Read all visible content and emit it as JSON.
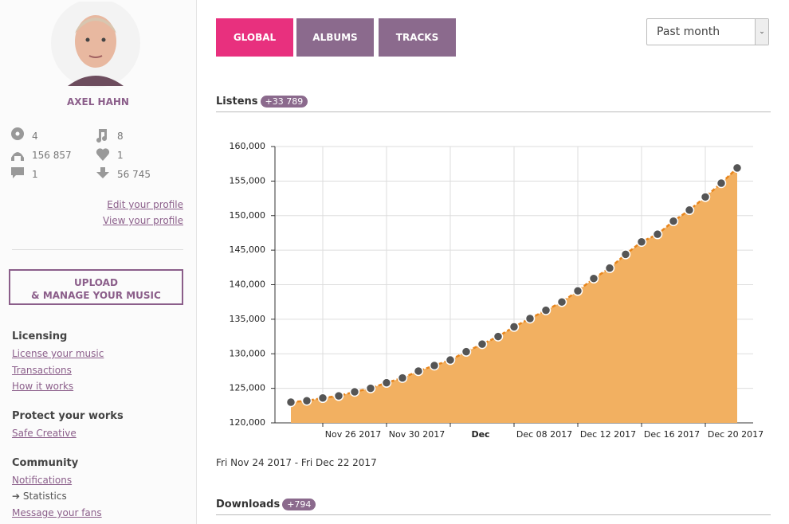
{
  "profile": {
    "name": "AXEL HAHN",
    "stats": [
      "4",
      "8",
      "156 857",
      "1",
      "1",
      "56 745"
    ],
    "links": [
      "Edit your profile",
      "View your profile"
    ]
  },
  "upload": [
    "UPLOAD",
    "& MANAGE YOUR MUSIC"
  ],
  "menu": [
    {
      "title": "Licensing",
      "items": [
        "License your music",
        "Transactions",
        "How it works"
      ]
    },
    {
      "title": "Protect your works",
      "items": [
        "Safe Creative"
      ]
    },
    {
      "title": "Community",
      "items": [
        "Notifications",
        "Statistics",
        "Message your fans"
      ]
    }
  ],
  "tabs": [
    "GLOBAL",
    "ALBUMS",
    "TRACKS"
  ],
  "period": "Past month",
  "listens": {
    "title": "Listens",
    "badge": "+33 789"
  },
  "chart_data": {
    "type": "area",
    "color": "#f2b061",
    "line_color": "#e8861d",
    "point_color": "#555555",
    "grid": true,
    "x": [
      "2017-11-24",
      "2017-11-25",
      "2017-11-26",
      "2017-11-27",
      "2017-11-28",
      "2017-11-29",
      "2017-11-30",
      "2017-12-01",
      "2017-12-02",
      "2017-12-03",
      "2017-12-04",
      "2017-12-05",
      "2017-12-06",
      "2017-12-07",
      "2017-12-08",
      "2017-12-09",
      "2017-12-10",
      "2017-12-11",
      "2017-12-12",
      "2017-12-13",
      "2017-12-14",
      "2017-12-15",
      "2017-12-16",
      "2017-12-17",
      "2017-12-18",
      "2017-12-19",
      "2017-12-20",
      "2017-12-21",
      "2017-12-22"
    ],
    "values": [
      123000,
      123200,
      123600,
      123900,
      124500,
      125000,
      125800,
      126500,
      127500,
      128300,
      129100,
      130300,
      131400,
      132500,
      133900,
      135100,
      136300,
      137500,
      139100,
      140900,
      142400,
      144400,
      146200,
      147300,
      149200,
      150800,
      152700,
      154700,
      156900
    ],
    "xlim": [
      "2017-11-23",
      "2017-12-23"
    ],
    "xticks": [
      {
        "value": "2017-11-26",
        "label": "Nov 26 2017"
      },
      {
        "value": "2017-11-30",
        "label": "Nov 30 2017"
      },
      {
        "value": "2017-12-04",
        "label": "Dec"
      },
      {
        "value": "2017-12-08",
        "label": "Dec 08 2017"
      },
      {
        "value": "2017-12-12",
        "label": "Dec 12 2017"
      },
      {
        "value": "2017-12-16",
        "label": "Dec 16 2017"
      },
      {
        "value": "2017-12-20",
        "label": "Dec 20 2017"
      }
    ],
    "ylim": [
      120000,
      160000
    ],
    "yticks": [
      {
        "value": 120000,
        "label": "120,000"
      },
      {
        "value": 125000,
        "label": "125,000"
      },
      {
        "value": 130000,
        "label": "130,000"
      },
      {
        "value": 135000,
        "label": "135,000"
      },
      {
        "value": 140000,
        "label": "140,000"
      },
      {
        "value": 145000,
        "label": "145,000"
      },
      {
        "value": 150000,
        "label": "150,000"
      },
      {
        "value": 155000,
        "label": "155,000"
      },
      {
        "value": 160000,
        "label": "160,000"
      }
    ]
  },
  "range": "Fri Nov 24 2017 - Fri Dec 22 2017",
  "downloads": {
    "title": "Downloads",
    "badge": "+794"
  }
}
